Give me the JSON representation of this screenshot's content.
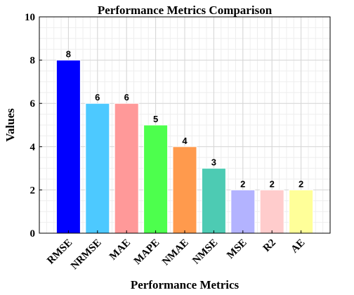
{
  "chart_data": {
    "type": "bar",
    "title": "Performance Metrics Comparison",
    "xlabel": "Performance Metrics",
    "ylabel": "Values",
    "categories": [
      "RMSE",
      "NRMSE",
      "MAE",
      "MAPE",
      "NMAE",
      "NMSE",
      "MSE",
      "R2",
      "AE"
    ],
    "values": [
      8,
      6,
      6,
      5,
      4,
      3,
      2,
      2,
      2
    ],
    "colors": [
      "#0000ff",
      "#4dc9ff",
      "#ff9999",
      "#4dff4d",
      "#ff9a4d",
      "#4dcbb3",
      "#b3b3ff",
      "#ffcccc",
      "#ffff99"
    ],
    "ylim": [
      0,
      10
    ],
    "yticks": [
      0,
      2,
      4,
      6,
      8,
      10
    ],
    "grid": true,
    "data_labels": true
  }
}
